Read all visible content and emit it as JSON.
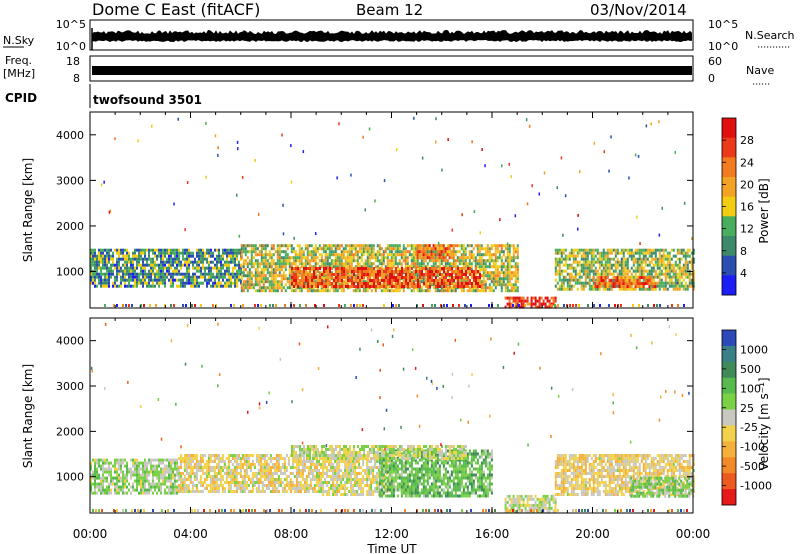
{
  "header": {
    "station": "Dome C East (fitACF)",
    "beam": "Beam 12",
    "date": "03/Nov/2014"
  },
  "status_panels": {
    "nsky": {
      "label": "N.Sky",
      "left_ticks": [
        "10^5",
        "10^0"
      ],
      "right_label": "N.Search",
      "right_ticks": [
        "10^5",
        "10^0"
      ]
    },
    "freq": {
      "label_line1": "Freq.",
      "label_line2": "[MHz]",
      "left_ticks": [
        "18",
        "8"
      ],
      "right_label": "Nave",
      "right_ticks": [
        "60",
        "0"
      ]
    },
    "cpid": {
      "label": "CPID",
      "text": "twofsound  3501"
    }
  },
  "axes": {
    "ylabel": "Slant Range [km]",
    "yticks": [
      "1000",
      "2000",
      "3000",
      "4000"
    ],
    "xlabel": "Time UT",
    "xticks": [
      "00:00",
      "04:00",
      "08:00",
      "12:00",
      "16:00",
      "20:00",
      "00:00"
    ]
  },
  "colorbars": {
    "power": {
      "label": "Power [dB]",
      "ticks": [
        "4",
        "8",
        "12",
        "16",
        "20",
        "24",
        "28"
      ],
      "colors": [
        "#1d1df5",
        "#2b4fb0",
        "#3d8a6a",
        "#48ad5c",
        "#f2cd14",
        "#f2a323",
        "#f27a1f",
        "#ea3a1a",
        "#e01010"
      ]
    },
    "velocity": {
      "label": "Velocity [m s⁻¹]",
      "ticks": [
        "1000",
        "500",
        "100",
        "25",
        "-25",
        "-100",
        "-500",
        "-1000"
      ],
      "colors": [
        "#2c49b8",
        "#3a7e86",
        "#3f8a58",
        "#58b94e",
        "#7ad146",
        "#c8c8c0",
        "#f2d24a",
        "#f3b03a",
        "#f28a2a",
        "#ec5a20",
        "#e61a1a"
      ]
    }
  },
  "chart_data": [
    {
      "type": "heatmap",
      "title": "",
      "xlabel": "Time UT",
      "ylabel": "Slant Range [km]",
      "xlim": [
        0,
        24
      ],
      "ylim": [
        200,
        4500
      ],
      "colorbar_label": "Power [dB]",
      "colorbar_range": [
        0,
        32
      ],
      "regions": [
        {
          "x": [
            0.0,
            6.0
          ],
          "y": [
            700,
            1500
          ],
          "value": 10
        },
        {
          "x": [
            6.0,
            17.0
          ],
          "y": [
            600,
            1600
          ],
          "value": 16
        },
        {
          "x": [
            8.0,
            15.5
          ],
          "y": [
            650,
            1100
          ],
          "value": 26
        },
        {
          "x": [
            13.0,
            14.5
          ],
          "y": [
            1300,
            1600
          ],
          "value": 24
        },
        {
          "x": [
            16.5,
            18.5
          ],
          "y": [
            250,
            450
          ],
          "value": 28
        },
        {
          "x": [
            18.5,
            24.0
          ],
          "y": [
            600,
            1500
          ],
          "value": 14
        },
        {
          "x": [
            20.0,
            22.5
          ],
          "y": [
            650,
            900
          ],
          "value": 24
        }
      ]
    },
    {
      "type": "heatmap",
      "title": "",
      "xlabel": "Time UT",
      "ylabel": "Slant Range [km]",
      "xlim": [
        0,
        24
      ],
      "ylim": [
        200,
        4500
      ],
      "colorbar_label": "Velocity [m s⁻¹]",
      "colorbar_range": [
        -1000,
        1000
      ],
      "regions": [
        {
          "x": [
            0.0,
            3.5
          ],
          "y": [
            650,
            1400
          ],
          "value": 120
        },
        {
          "x": [
            3.5,
            9.0
          ],
          "y": [
            650,
            1500
          ],
          "value": -120
        },
        {
          "x": [
            9.0,
            12.0
          ],
          "y": [
            600,
            1500
          ],
          "value": -60
        },
        {
          "x": [
            11.5,
            16.0
          ],
          "y": [
            600,
            1600
          ],
          "value": 300
        },
        {
          "x": [
            8.0,
            15.0
          ],
          "y": [
            1400,
            1700
          ],
          "value": 0
        },
        {
          "x": [
            16.5,
            18.5
          ],
          "y": [
            250,
            600
          ],
          "value": 0
        },
        {
          "x": [
            18.5,
            24.0
          ],
          "y": [
            600,
            1500
          ],
          "value": -150
        },
        {
          "x": [
            21.5,
            24.0
          ],
          "y": [
            600,
            1000
          ],
          "value": 200
        }
      ]
    }
  ]
}
